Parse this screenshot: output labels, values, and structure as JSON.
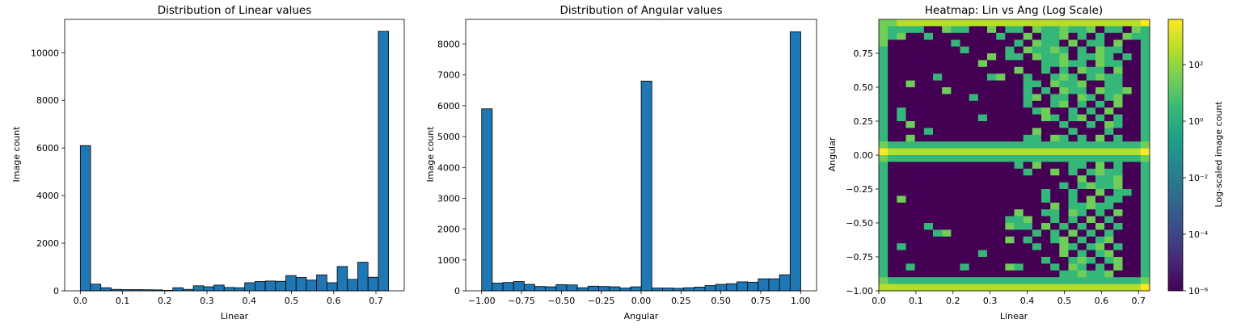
{
  "chart_data": [
    {
      "type": "bar",
      "title": "Distribution of Linear values",
      "xlabel": "Linear",
      "ylabel": "Image count",
      "xlim": [
        -0.037,
        0.767
      ],
      "ylim": [
        0,
        11400
      ],
      "xticks": [
        0.0,
        0.1,
        0.2,
        0.3,
        0.4,
        0.5,
        0.6,
        0.7
      ],
      "xtick_labels": [
        "0.0",
        "0.1",
        "0.2",
        "0.3",
        "0.4",
        "0.5",
        "0.6",
        "0.7"
      ],
      "yticks": [
        0,
        2000,
        4000,
        6000,
        8000,
        10000
      ],
      "ytick_labels": [
        "0",
        "2000",
        "4000",
        "6000",
        "8000",
        "10000"
      ],
      "bin_start": 0.0,
      "bin_width": 0.02433,
      "values": [
        6100,
        280,
        130,
        60,
        50,
        50,
        45,
        40,
        20,
        130,
        60,
        210,
        170,
        240,
        140,
        130,
        340,
        390,
        410,
        400,
        640,
        560,
        450,
        670,
        340,
        1020,
        480,
        1200,
        570,
        10900
      ],
      "bar_color": "#1f77b4",
      "edge_color": "#000000"
    },
    {
      "type": "bar",
      "title": "Distribution of Angular values",
      "xlabel": "Angular",
      "ylabel": "Image count",
      "xlim": [
        -1.1,
        1.1
      ],
      "ylim": [
        0,
        8800
      ],
      "xticks": [
        -1.0,
        -0.75,
        -0.5,
        -0.25,
        0.0,
        0.25,
        0.5,
        0.75,
        1.0
      ],
      "xtick_labels": [
        "−1.00",
        "−0.75",
        "−0.50",
        "−0.25",
        "0.00",
        "0.25",
        "0.50",
        "0.75",
        "1.00"
      ],
      "yticks": [
        0,
        1000,
        2000,
        3000,
        4000,
        5000,
        6000,
        7000,
        8000
      ],
      "ytick_labels": [
        "0",
        "1000",
        "2000",
        "3000",
        "4000",
        "5000",
        "6000",
        "7000",
        "8000"
      ],
      "bin_start": -1.0,
      "bin_width": 0.0667,
      "values": [
        5900,
        250,
        270,
        300,
        210,
        140,
        130,
        200,
        190,
        100,
        150,
        140,
        130,
        90,
        130,
        6800,
        90,
        90,
        80,
        100,
        120,
        170,
        210,
        230,
        290,
        280,
        390,
        390,
        520,
        8400
      ],
      "bar_color": "#1f77b4",
      "edge_color": "#000000"
    },
    {
      "type": "heatmap",
      "title": "Heatmap: Lin vs Ang (Log Scale)",
      "xlabel": "Linear",
      "ylabel": "Angular",
      "xlim": [
        0.0,
        0.73
      ],
      "ylim": [
        -1.0,
        1.0
      ],
      "xticks": [
        0.0,
        0.1,
        0.2,
        0.3,
        0.4,
        0.5,
        0.6,
        0.7
      ],
      "xtick_labels": [
        "0.0",
        "0.1",
        "0.2",
        "0.3",
        "0.4",
        "0.5",
        "0.6",
        "0.7"
      ],
      "yticks": [
        -1.0,
        -0.75,
        -0.5,
        -0.25,
        0.0,
        0.25,
        0.5,
        0.75
      ],
      "ytick_labels": [
        "−1.00",
        "−0.75",
        "−0.50",
        "−0.25",
        "0.00",
        "0.25",
        "0.50",
        "0.75"
      ],
      "colorbar_label": "Log-scaled image count",
      "colorbar_ticks_log10": [
        -6,
        -4,
        -2,
        0,
        2
      ],
      "colorbar_tick_labels": [
        "10⁻⁶",
        "10⁻⁴",
        "10⁻²",
        "10⁰",
        "10²"
      ],
      "colorbar_range_log10": [
        -6,
        3.6
      ],
      "colormap": [
        "#440154",
        "#482878",
        "#3e4989",
        "#31688e",
        "#26828e",
        "#1f9e89",
        "#35b779",
        "#6ece58",
        "#b5de2b",
        "#fde725"
      ],
      "grid_size": [
        40,
        30
      ],
      "cells_note": "rows listed top(angular=1.0) to bottom(angular=-1.0); 0 = empty bin (10^-6), 1 = a few counts, 2 = tens, 3 = hundreds, 4 = thousands",
      "cells": [
        "223333333333333333333333333334",
        "211110000000000000000000000021",
        "210000000000000000000000000011",
        "200000000000000000000000000001",
        "100000000000000000000000000001",
        "100000000000000000000000000001",
        "100000000000000000000000000001",
        "100000000000000000000000000001",
        "100000000000000000000000000001",
        "100000000000000000000000000001",
        "100000000000000000000000000001",
        "100000000000000000000000000001",
        "100000000000000000000000000001",
        "100000000000000000000000000001",
        "100000000000000000000000000001",
        "100000000000000000000000000001",
        "100000000000000000000000000001",
        "100000000000000000000000000001",
        "211111111111111111111111111112",
        "433333333333333333333333333334",
        "211111111111111111111111111112",
        "100000000000000000000000000001",
        "100000000000000000000000000001",
        "100000000000000000000000000001",
        "100000000000000000000000000001",
        "100000000000000000000000000001",
        "100000000000000000000000000001",
        "100000000000000000000000000001",
        "100000000000000000000000000001",
        "100000000000000000000000000001",
        "100000000000000000000000000001",
        "100000000000000000000000000001",
        "100000000000000000000000000001",
        "100000000000000000000000000001",
        "100000000000000000000000000001",
        "100000000000000000000000000001",
        "100000000000000000000000000001",
        "100000000000000000000000000001",
        "211111111111111111111111111112",
        "333333333333333333333333333334"
      ],
      "scatter_note": "sparse occupied bins inside the interior (row, col) from top",
      "scatter": [
        [
          1,
          7
        ],
        [
          1,
          8
        ],
        [
          1,
          9
        ],
        [
          1,
          12
        ],
        [
          1,
          14
        ],
        [
          1,
          15
        ],
        [
          1,
          17
        ],
        [
          1,
          18
        ],
        [
          1,
          19
        ],
        [
          1,
          20
        ],
        [
          1,
          21
        ],
        [
          1,
          22
        ],
        [
          1,
          23
        ],
        [
          1,
          25
        ],
        [
          1,
          26
        ],
        [
          2,
          2
        ],
        [
          2,
          5
        ],
        [
          2,
          13
        ],
        [
          2,
          16
        ],
        [
          2,
          18
        ],
        [
          2,
          19
        ],
        [
          2,
          20
        ],
        [
          2,
          22
        ],
        [
          2,
          24
        ],
        [
          2,
          27
        ],
        [
          3,
          8
        ],
        [
          3,
          15
        ],
        [
          3,
          17
        ],
        [
          3,
          18
        ],
        [
          3,
          19
        ],
        [
          3,
          21
        ],
        [
          3,
          23
        ],
        [
          3,
          24
        ],
        [
          3,
          26
        ],
        [
          4,
          9
        ],
        [
          4,
          14
        ],
        [
          4,
          16
        ],
        [
          4,
          17
        ],
        [
          4,
          18
        ],
        [
          4,
          19
        ],
        [
          4,
          20
        ],
        [
          4,
          22
        ],
        [
          4,
          24
        ],
        [
          4,
          25
        ],
        [
          4,
          26
        ],
        [
          5,
          12
        ],
        [
          5,
          14
        ],
        [
          5,
          15
        ],
        [
          5,
          17
        ],
        [
          5,
          18
        ],
        [
          5,
          19
        ],
        [
          5,
          20
        ],
        [
          5,
          22
        ],
        [
          5,
          23
        ],
        [
          5,
          24
        ],
        [
          5,
          25
        ],
        [
          5,
          27
        ],
        [
          6,
          11
        ],
        [
          6,
          18
        ],
        [
          6,
          19
        ],
        [
          6,
          20
        ],
        [
          6,
          21
        ],
        [
          6,
          22
        ],
        [
          6,
          24
        ],
        [
          6,
          25
        ],
        [
          6,
          26
        ],
        [
          7,
          15
        ],
        [
          7,
          18
        ],
        [
          7,
          20
        ],
        [
          7,
          22
        ],
        [
          7,
          23
        ],
        [
          7,
          24
        ],
        [
          7,
          26
        ],
        [
          8,
          6
        ],
        [
          8,
          12
        ],
        [
          8,
          13
        ],
        [
          8,
          16
        ],
        [
          8,
          19
        ],
        [
          8,
          20
        ],
        [
          8,
          21
        ],
        [
          8,
          23
        ],
        [
          8,
          24
        ],
        [
          8,
          25
        ],
        [
          8,
          26
        ],
        [
          9,
          3
        ],
        [
          9,
          16
        ],
        [
          9,
          17
        ],
        [
          9,
          19
        ],
        [
          9,
          20
        ],
        [
          9,
          21
        ],
        [
          9,
          22
        ],
        [
          9,
          25
        ],
        [
          9,
          26
        ],
        [
          10,
          7
        ],
        [
          10,
          16
        ],
        [
          10,
          18
        ],
        [
          10,
          20
        ],
        [
          10,
          21
        ],
        [
          10,
          22
        ],
        [
          10,
          24
        ],
        [
          10,
          25
        ],
        [
          10,
          26
        ],
        [
          10,
          27
        ],
        [
          11,
          10
        ],
        [
          11,
          16
        ],
        [
          11,
          17
        ],
        [
          11,
          19
        ],
        [
          11,
          20
        ],
        [
          11,
          22
        ],
        [
          11,
          23
        ],
        [
          11,
          25
        ],
        [
          11,
          26
        ],
        [
          12,
          16
        ],
        [
          12,
          19
        ],
        [
          12,
          20
        ],
        [
          12,
          22
        ],
        [
          12,
          24
        ],
        [
          12,
          26
        ],
        [
          13,
          2
        ],
        [
          13,
          17
        ],
        [
          13,
          18
        ],
        [
          13,
          21
        ],
        [
          13,
          23
        ],
        [
          13,
          25
        ],
        [
          14,
          2
        ],
        [
          14,
          11
        ],
        [
          14,
          18
        ],
        [
          14,
          19
        ],
        [
          14,
          21
        ],
        [
          14,
          22
        ],
        [
          14,
          24
        ],
        [
          14,
          26
        ],
        [
          15,
          3
        ],
        [
          15,
          20
        ],
        [
          15,
          23
        ],
        [
          15,
          25
        ],
        [
          15,
          26
        ],
        [
          16,
          5
        ],
        [
          16,
          17
        ],
        [
          16,
          21
        ],
        [
          16,
          25
        ],
        [
          17,
          3
        ],
        [
          17,
          16
        ],
        [
          17,
          17
        ],
        [
          17,
          19
        ],
        [
          17,
          20
        ],
        [
          17,
          22
        ],
        [
          17,
          24
        ],
        [
          17,
          26
        ],
        [
          21,
          15
        ],
        [
          21,
          17
        ],
        [
          21,
          21
        ],
        [
          21,
          22
        ],
        [
          21,
          24
        ],
        [
          21,
          26
        ],
        [
          22,
          16
        ],
        [
          22,
          19
        ],
        [
          22,
          21
        ],
        [
          22,
          23
        ],
        [
          22,
          24
        ],
        [
          22,
          25
        ],
        [
          22,
          26
        ],
        [
          23,
          22
        ],
        [
          23,
          24
        ],
        [
          23,
          25
        ],
        [
          23,
          26
        ],
        [
          24,
          20
        ],
        [
          24,
          22
        ],
        [
          24,
          23
        ],
        [
          24,
          24
        ],
        [
          24,
          25
        ],
        [
          24,
          26
        ],
        [
          25,
          18
        ],
        [
          25,
          21
        ],
        [
          25,
          24
        ],
        [
          25,
          26
        ],
        [
          25,
          27
        ],
        [
          26,
          2
        ],
        [
          26,
          18
        ],
        [
          26,
          21
        ],
        [
          26,
          23
        ],
        [
          26,
          25
        ],
        [
          26,
          26
        ],
        [
          27,
          19
        ],
        [
          27,
          21
        ],
        [
          27,
          22
        ],
        [
          27,
          23
        ],
        [
          27,
          24
        ],
        [
          27,
          25
        ],
        [
          28,
          15
        ],
        [
          28,
          18
        ],
        [
          28,
          19
        ],
        [
          28,
          21
        ],
        [
          28,
          22
        ],
        [
          28,
          24
        ],
        [
          28,
          26
        ],
        [
          29,
          14
        ],
        [
          29,
          15
        ],
        [
          29,
          16
        ],
        [
          29,
          19
        ],
        [
          29,
          21
        ],
        [
          29,
          23
        ],
        [
          29,
          25
        ],
        [
          30,
          5
        ],
        [
          30,
          14
        ],
        [
          30,
          15
        ],
        [
          30,
          16
        ],
        [
          30,
          18
        ],
        [
          30,
          20
        ],
        [
          30,
          22
        ],
        [
          30,
          24
        ],
        [
          30,
          26
        ],
        [
          31,
          6
        ],
        [
          31,
          7
        ],
        [
          31,
          17
        ],
        [
          31,
          19
        ],
        [
          31,
          21
        ],
        [
          31,
          23
        ],
        [
          31,
          25
        ],
        [
          32,
          14
        ],
        [
          32,
          16
        ],
        [
          32,
          19
        ],
        [
          32,
          20
        ],
        [
          32,
          22
        ],
        [
          32,
          24
        ],
        [
          32,
          25
        ],
        [
          33,
          2
        ],
        [
          33,
          17
        ],
        [
          33,
          20
        ],
        [
          33,
          21
        ],
        [
          33,
          23
        ],
        [
          33,
          24
        ],
        [
          33,
          26
        ],
        [
          34,
          11
        ],
        [
          34,
          20
        ],
        [
          34,
          22
        ],
        [
          34,
          24
        ],
        [
          34,
          25
        ],
        [
          35,
          18
        ],
        [
          35,
          21
        ],
        [
          35,
          22
        ],
        [
          35,
          23
        ],
        [
          35,
          25
        ],
        [
          35,
          26
        ],
        [
          36,
          3
        ],
        [
          36,
          9
        ],
        [
          36,
          14
        ],
        [
          36,
          15
        ],
        [
          36,
          19
        ],
        [
          36,
          21
        ],
        [
          36,
          22
        ],
        [
          36,
          24
        ],
        [
          36,
          26
        ],
        [
          37,
          20
        ],
        [
          37,
          21
        ],
        [
          37,
          22
        ],
        [
          37,
          23
        ],
        [
          37,
          24
        ],
        [
          37,
          25
        ]
      ]
    }
  ]
}
